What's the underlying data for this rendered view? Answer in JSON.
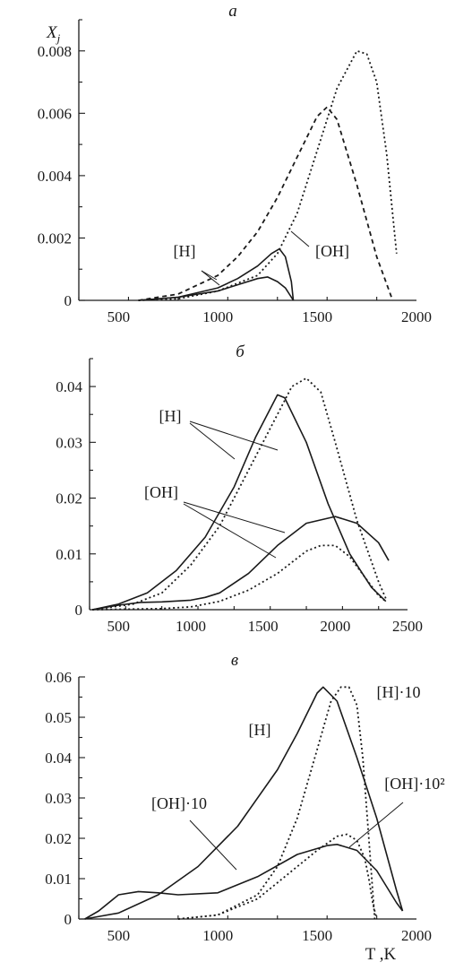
{
  "chart_data": [
    {
      "type": "line",
      "panel_label": "a",
      "ylabel": "X_j",
      "xlim": [
        300,
        2000
      ],
      "ylim": [
        0,
        0.009
      ],
      "xticks": [
        500,
        1000,
        1500,
        2000
      ],
      "yticks": [
        0,
        0.002,
        0.004,
        0.006,
        0.008
      ],
      "ytick_labels": [
        "0",
        "0.002",
        "0.004",
        "0.006",
        "0.008"
      ],
      "annotations": [
        "[H]",
        "[OH]"
      ],
      "series": [
        {
          "label": "[H]",
          "style": "solid",
          "x": [
            600,
            800,
            1000,
            1100,
            1200,
            1270,
            1310,
            1340,
            1370,
            1380
          ],
          "y": [
            0,
            0.0001,
            0.0004,
            0.0007,
            0.0011,
            0.0015,
            0.00165,
            0.0014,
            0.0006,
            0
          ]
        },
        {
          "label": "[OH]",
          "style": "solid",
          "x": [
            600,
            800,
            1000,
            1100,
            1200,
            1250,
            1300,
            1340,
            1370,
            1380
          ],
          "y": [
            0,
            0.0001,
            0.0003,
            0.0005,
            0.0007,
            0.00075,
            0.0006,
            0.0004,
            0.0001,
            0
          ]
        },
        {
          "label": "[H]",
          "style": "dashed",
          "x": [
            600,
            800,
            1000,
            1100,
            1200,
            1300,
            1400,
            1500,
            1550,
            1600,
            1700,
            1800,
            1880
          ],
          "y": [
            0,
            0.0002,
            0.0008,
            0.0014,
            0.0022,
            0.0033,
            0.0046,
            0.0059,
            0.0062,
            0.0058,
            0.0037,
            0.0014,
            0
          ]
        },
        {
          "label": "[OH]",
          "style": "dotted",
          "x": [
            600,
            800,
            1000,
            1200,
            1300,
            1400,
            1500,
            1600,
            1700,
            1750,
            1800,
            1850,
            1900
          ],
          "y": [
            0,
            5e-05,
            0.0003,
            0.0008,
            0.0015,
            0.0028,
            0.0048,
            0.0068,
            0.008,
            0.0079,
            0.007,
            0.0047,
            0.0015
          ]
        }
      ]
    },
    {
      "type": "line",
      "panel_label": "б",
      "xlim": [
        300,
        2500
      ],
      "ylim": [
        0,
        0.045
      ],
      "xticks": [
        500,
        1000,
        1500,
        2000,
        2500
      ],
      "yticks": [
        0,
        0.01,
        0.02,
        0.03,
        0.04
      ],
      "ytick_labels": [
        "0",
        "0.01",
        "0.02",
        "0.03",
        "0.04"
      ],
      "annotations": [
        "[H]",
        "[OH]"
      ],
      "series": [
        {
          "label": "[H]",
          "style": "solid",
          "x": [
            320,
            500,
            700,
            900,
            1100,
            1300,
            1450,
            1600,
            1650,
            1800,
            1950,
            2100,
            2250,
            2350
          ],
          "y": [
            0,
            0.001,
            0.003,
            0.007,
            0.013,
            0.022,
            0.031,
            0.0385,
            0.038,
            0.03,
            0.019,
            0.01,
            0.004,
            0.0015
          ]
        },
        {
          "label": "[H]",
          "style": "dotted",
          "x": [
            320,
            600,
            800,
            1000,
            1200,
            1400,
            1600,
            1700,
            1800,
            1900,
            2000,
            2150,
            2300,
            2350
          ],
          "y": [
            0,
            0.001,
            0.003,
            0.008,
            0.015,
            0.025,
            0.035,
            0.04,
            0.0415,
            0.039,
            0.03,
            0.016,
            0.005,
            0.002
          ]
        },
        {
          "label": "[OH]",
          "style": "solid",
          "x": [
            320,
            500,
            650,
            800,
            1000,
            1100,
            1200,
            1400,
            1600,
            1800,
            2000,
            2150,
            2300,
            2370
          ],
          "y": [
            0,
            0.0008,
            0.0013,
            0.0014,
            0.0017,
            0.0022,
            0.003,
            0.0065,
            0.0115,
            0.0155,
            0.0167,
            0.0155,
            0.012,
            0.0088
          ]
        },
        {
          "label": "[OH]",
          "style": "dotted",
          "x": [
            320,
            800,
            1000,
            1200,
            1400,
            1600,
            1800,
            1900,
            2000,
            2100,
            2200,
            2300,
            2350
          ],
          "y": [
            0,
            0.0002,
            0.0005,
            0.0015,
            0.0035,
            0.0065,
            0.0105,
            0.0115,
            0.0115,
            0.0095,
            0.006,
            0.0025,
            0.0015
          ]
        }
      ]
    },
    {
      "type": "line",
      "panel_label": "в",
      "xlabel": "T ,K",
      "xlim": [
        300,
        2000
      ],
      "ylim": [
        0,
        0.06
      ],
      "xticks": [
        500,
        1000,
        1500,
        2000
      ],
      "yticks": [
        0,
        0.01,
        0.02,
        0.03,
        0.04,
        0.05,
        0.06
      ],
      "ytick_labels": [
        "0",
        "0.01",
        "0.02",
        "0.03",
        "0.04",
        "0.05",
        "0.06"
      ],
      "annotations": [
        "[H]",
        "[H]·10",
        "[OH]·10",
        "[OH]·10²"
      ],
      "series": [
        {
          "label": "[H]",
          "style": "solid",
          "x": [
            330,
            500,
            700,
            900,
            1100,
            1300,
            1400,
            1500,
            1530,
            1600,
            1700,
            1800,
            1900,
            1930
          ],
          "y": [
            0,
            0.0015,
            0.006,
            0.013,
            0.023,
            0.037,
            0.046,
            0.056,
            0.0575,
            0.054,
            0.04,
            0.025,
            0.007,
            0.002
          ]
        },
        {
          "label": "[H]·10",
          "style": "dotted",
          "x": [
            800,
            1000,
            1200,
            1300,
            1400,
            1500,
            1570,
            1620,
            1660,
            1700,
            1730,
            1760,
            1790
          ],
          "y": [
            0,
            0.001,
            0.006,
            0.013,
            0.025,
            0.042,
            0.054,
            0.0575,
            0.0575,
            0.053,
            0.04,
            0.02,
            0
          ]
        },
        {
          "label": "[OH]·10",
          "style": "solid",
          "x": [
            330,
            400,
            500,
            600,
            700,
            800,
            1000,
            1200,
            1400,
            1550,
            1600,
            1700,
            1800,
            1900,
            1930
          ],
          "y": [
            0,
            0.002,
            0.006,
            0.0068,
            0.0065,
            0.006,
            0.0065,
            0.0105,
            0.016,
            0.0182,
            0.0185,
            0.017,
            0.012,
            0.004,
            0.002
          ]
        },
        {
          "label": "[OH]·10²",
          "style": "dotted",
          "x": [
            800,
            1000,
            1200,
            1300,
            1400,
            1500,
            1600,
            1650,
            1700,
            1740,
            1760,
            1780,
            1800
          ],
          "y": [
            0,
            0.001,
            0.005,
            0.009,
            0.013,
            0.017,
            0.0205,
            0.021,
            0.0195,
            0.015,
            0.01,
            0.004,
            0
          ]
        }
      ]
    }
  ]
}
